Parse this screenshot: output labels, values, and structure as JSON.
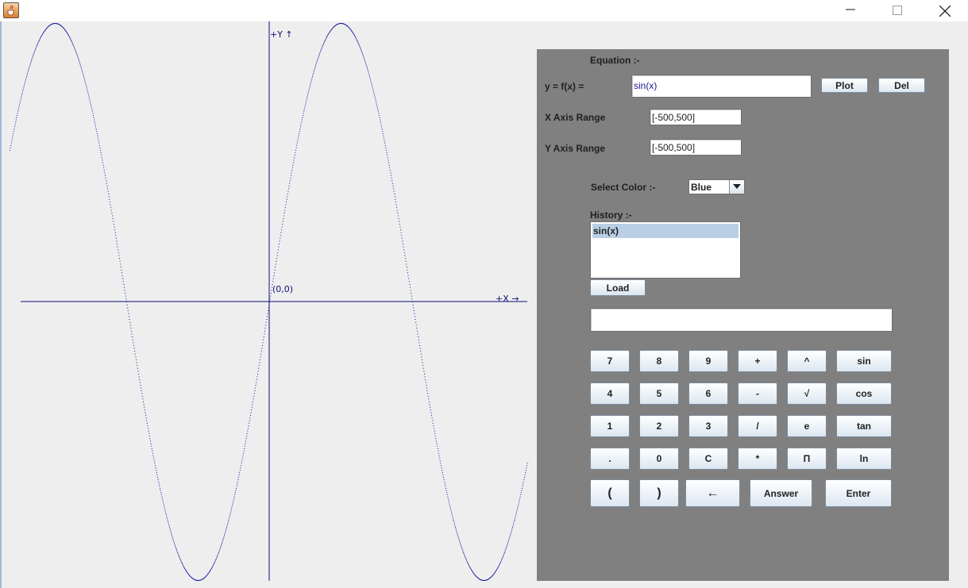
{
  "window": {
    "app_icon": "java-cup-icon",
    "minimize_icon": "minimize-icon",
    "maximize_icon": "maximize-icon",
    "close_icon": "close-icon"
  },
  "graph": {
    "y_axis_label": "+Y ↑",
    "x_axis_label": "+X →",
    "origin_label": "(0,0)",
    "curve_color": "#1010a0",
    "axis_color": "#101078"
  },
  "chart_data": {
    "type": "line",
    "function": "sin(x)",
    "x_range": [
      -500,
      500
    ],
    "y_range": [
      -500,
      500
    ],
    "series": [
      {
        "values": "y = sin(x)"
      }
    ]
  },
  "panel": {
    "equation_label": "Equation :-",
    "fx_label": "y = f(x) =",
    "fx_value": "sin(x)",
    "plot_label": "Plot",
    "del_label": "Del",
    "x_range_label": "X Axis Range",
    "x_range_value": "[-500,500]",
    "y_range_label": "Y Axis Range",
    "y_range_value": "[-500,500]",
    "color_label": "Select Color :-",
    "color_value": "Blue",
    "history_label": "History :-",
    "history_items": [
      "sin(x)"
    ],
    "load_label": "Load",
    "display_value": ""
  },
  "keypad": {
    "rows": [
      [
        "7",
        "8",
        "9",
        "+",
        "^",
        "sin"
      ],
      [
        "4",
        "5",
        "6",
        "-",
        "√",
        "cos"
      ],
      [
        "1",
        "2",
        "3",
        "/",
        "e",
        "tan"
      ],
      [
        ".",
        "0",
        "C",
        "*",
        "Π",
        "ln"
      ]
    ],
    "last_row": [
      "(",
      ")",
      "←",
      "Answer",
      "Enter"
    ]
  },
  "colors": {
    "panel_bg": "#808080",
    "window_bg": "#eeeeee",
    "selection_bg": "#b8cfe5"
  }
}
